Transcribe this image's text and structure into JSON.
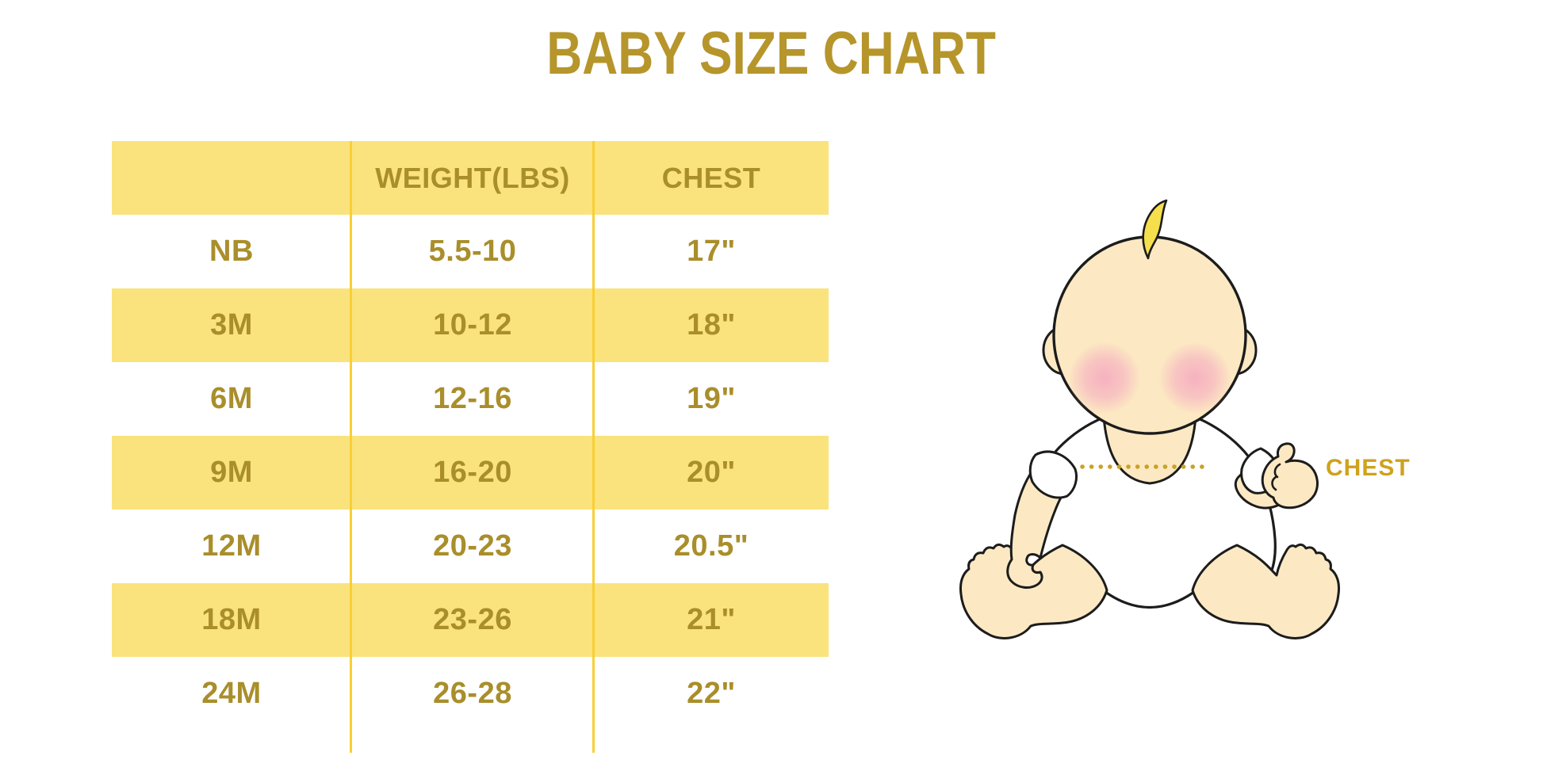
{
  "title": "BABY SIZE CHART",
  "chart_data": {
    "type": "table",
    "title": "BABY SIZE CHART",
    "columns": [
      "",
      "WEIGHT(LBS)",
      "CHEST"
    ],
    "rows": [
      [
        "NB",
        "5.5-10",
        "17\""
      ],
      [
        "3M",
        "10-12",
        "18\""
      ],
      [
        "6M",
        "12-16",
        "19\""
      ],
      [
        "9M",
        "16-20",
        "20\""
      ],
      [
        "12M",
        "20-23",
        "20.5\""
      ],
      [
        "18M",
        "23-26",
        "21\""
      ],
      [
        "24M",
        "26-28",
        "22\""
      ]
    ],
    "layout": {
      "striped": "header and rows 3M, 9M, 18M have yellow background",
      "grid": "two vertical gold separator lines only"
    }
  },
  "diagram": {
    "chest_label": "CHEST",
    "description": "cartoon seated baby with yellow hair curl, pink cheeks, white onesie, gold dotted measurement line across chest"
  },
  "colors": {
    "band_yellow": "#FAE37D",
    "grid_gold": "#F9CF35",
    "cell_text_gold": "#A98E2B",
    "title_gold": "#B6952B",
    "chest_label_gold": "#CFA21D",
    "dotted_line_gold": "#C9A227",
    "baby_skin": "#FCE9C3",
    "baby_hair": "#F6DF4D",
    "baby_blush": "#F5A8C0",
    "baby_outline": "#1C1C1C",
    "shirt_white": "#FFFFFF"
  }
}
